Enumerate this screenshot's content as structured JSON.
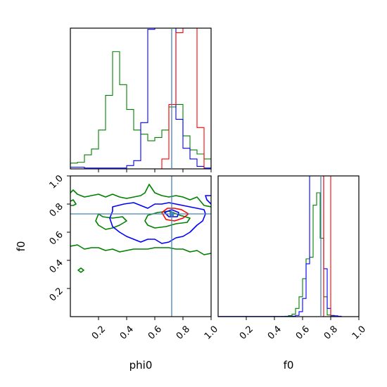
{
  "chart_data": {
    "type": "corner",
    "parameters": [
      "phi0",
      "f0"
    ],
    "truth": {
      "phi0": 0.72,
      "f0": 0.73
    },
    "colors": {
      "red": "#ff0000",
      "blue": "#0000ff",
      "green": "#008000",
      "truth": "#4682b4"
    },
    "tick_labels": [
      "0.2",
      "0.4",
      "0.6",
      "0.8",
      "1.0"
    ],
    "axes": {
      "phi0": {
        "range": [
          0.0,
          1.0
        ]
      },
      "f0": {
        "range": [
          0.0,
          1.0
        ]
      }
    },
    "xlabel_phi0": "phi0",
    "xlabel_f0": "f0",
    "ylabel_f0": "f0",
    "hist_phi0": {
      "bin_edges": [
        0.0,
        0.05,
        0.1,
        0.15,
        0.2,
        0.25,
        0.3,
        0.35,
        0.4,
        0.45,
        0.5,
        0.55,
        0.6,
        0.65,
        0.7,
        0.75,
        0.8,
        0.85,
        0.9,
        0.95,
        1.0
      ],
      "series": [
        {
          "color": "green",
          "counts": [
            7,
            8,
            17,
            24,
            47,
            89,
            142,
            102,
            72,
            47,
            42,
            34,
            38,
            47,
            75,
            78,
            40,
            23,
            18,
            12
          ]
        },
        {
          "color": "blue",
          "counts": [
            2,
            2,
            1,
            1,
            1,
            1,
            1,
            1,
            4,
            10,
            56,
            169,
            220,
            220,
            220,
            60,
            25,
            12,
            3,
            1
          ]
        },
        {
          "color": "red",
          "counts": [
            0,
            0,
            0,
            0,
            0,
            0,
            0,
            0,
            0,
            0,
            0,
            0,
            0,
            12,
            78,
            165,
            220,
            220,
            50,
            0
          ]
        }
      ],
      "ymax": 150
    },
    "hist_f0": {
      "bin_edges": [
        0.0,
        0.025,
        0.05,
        0.075,
        0.1,
        0.125,
        0.15,
        0.175,
        0.2,
        0.225,
        0.25,
        0.275,
        0.3,
        0.325,
        0.35,
        0.375,
        0.4,
        0.425,
        0.45,
        0.475,
        0.5,
        0.525,
        0.55,
        0.575,
        0.6,
        0.625,
        0.65,
        0.675,
        0.7,
        0.725,
        0.75,
        0.775,
        0.8,
        0.825,
        0.85,
        0.875,
        0.9,
        0.925,
        0.95,
        0.975,
        1.0
      ],
      "series": [
        {
          "color": "green",
          "counts": [
            0,
            0,
            0,
            0,
            0,
            0,
            0,
            0,
            0,
            0,
            0,
            0,
            0,
            0,
            0,
            0,
            0,
            0,
            0.3,
            0.5,
            1.2,
            3,
            10,
            24,
            46,
            70,
            72,
            135,
            150,
            95,
            24,
            2,
            1,
            0,
            0,
            0,
            0,
            0,
            0,
            0
          ]
        },
        {
          "color": "blue",
          "counts": [
            0.3,
            0.3,
            0.3,
            0.3,
            0.3,
            0.3,
            0.3,
            0.3,
            0.3,
            0.3,
            0.3,
            0.3,
            0.3,
            0.3,
            0.3,
            0.3,
            0.3,
            0.3,
            0.3,
            0.3,
            0.3,
            0.6,
            1.5,
            6,
            22,
            64,
            175,
            275,
            300,
            240,
            58,
            10,
            1.5,
            1,
            0.5,
            0,
            0,
            0,
            0,
            0
          ]
        },
        {
          "color": "red",
          "counts": [
            0,
            0,
            0,
            0,
            0,
            0,
            0,
            0,
            0,
            0,
            0,
            0,
            0,
            0,
            0,
            0,
            0,
            0,
            0,
            0,
            0,
            0,
            0,
            0,
            0,
            0,
            0,
            0,
            0,
            0,
            300,
            300,
            0,
            0,
            0,
            0,
            0,
            0,
            0,
            0
          ]
        }
      ],
      "ymax": 150
    },
    "contours_2d": [
      {
        "color": "green",
        "level": "outer-upper",
        "closed": false,
        "points": [
          [
            0.0,
            0.88
          ],
          [
            0.02,
            0.9
          ],
          [
            0.05,
            0.87
          ],
          [
            0.1,
            0.85
          ],
          [
            0.15,
            0.86
          ],
          [
            0.2,
            0.87
          ],
          [
            0.25,
            0.85
          ],
          [
            0.3,
            0.87
          ],
          [
            0.35,
            0.85
          ],
          [
            0.4,
            0.84
          ],
          [
            0.45,
            0.85
          ],
          [
            0.5,
            0.86
          ],
          [
            0.53,
            0.88
          ],
          [
            0.56,
            0.94
          ],
          [
            0.6,
            0.88
          ],
          [
            0.65,
            0.86
          ],
          [
            0.7,
            0.85
          ],
          [
            0.75,
            0.86
          ],
          [
            0.8,
            0.85
          ],
          [
            0.85,
            0.83
          ],
          [
            0.9,
            0.85
          ],
          [
            0.95,
            0.79
          ],
          [
            1.0,
            0.78
          ]
        ]
      },
      {
        "color": "green",
        "level": "outer-lower",
        "closed": false,
        "points": [
          [
            0.0,
            0.5
          ],
          [
            0.05,
            0.51
          ],
          [
            0.1,
            0.48
          ],
          [
            0.15,
            0.49
          ],
          [
            0.2,
            0.49
          ],
          [
            0.25,
            0.47
          ],
          [
            0.3,
            0.48
          ],
          [
            0.35,
            0.46
          ],
          [
            0.4,
            0.47
          ],
          [
            0.45,
            0.48
          ],
          [
            0.5,
            0.48
          ],
          [
            0.55,
            0.48
          ],
          [
            0.6,
            0.49
          ],
          [
            0.65,
            0.49
          ],
          [
            0.7,
            0.49
          ],
          [
            0.75,
            0.48
          ],
          [
            0.8,
            0.48
          ],
          [
            0.85,
            0.46
          ],
          [
            0.9,
            0.47
          ],
          [
            0.95,
            0.44
          ],
          [
            1.0,
            0.45
          ]
        ]
      },
      {
        "color": "green",
        "level": "outer-left-edge",
        "closed": false,
        "points": [
          [
            0.0,
            0.82
          ],
          [
            0.02,
            0.83
          ],
          [
            0.04,
            0.8
          ],
          [
            0.02,
            0.79
          ],
          [
            0.0,
            0.79
          ]
        ]
      },
      {
        "color": "green",
        "level": "island",
        "closed": true,
        "points": [
          [
            0.075,
            0.345
          ],
          [
            0.095,
            0.33
          ],
          [
            0.075,
            0.315
          ],
          [
            0.055,
            0.33
          ]
        ]
      },
      {
        "color": "green",
        "level": "inner-left",
        "closed": true,
        "points": [
          [
            0.2,
            0.73
          ],
          [
            0.23,
            0.71
          ],
          [
            0.3,
            0.7
          ],
          [
            0.37,
            0.71
          ],
          [
            0.4,
            0.68
          ],
          [
            0.35,
            0.65
          ],
          [
            0.3,
            0.63
          ],
          [
            0.25,
            0.62
          ],
          [
            0.2,
            0.65
          ],
          [
            0.18,
            0.68
          ]
        ]
      },
      {
        "color": "green",
        "level": "inner-right",
        "closed": true,
        "points": [
          [
            0.55,
            0.72
          ],
          [
            0.62,
            0.74
          ],
          [
            0.7,
            0.75
          ],
          [
            0.78,
            0.72
          ],
          [
            0.85,
            0.7
          ],
          [
            0.83,
            0.67
          ],
          [
            0.75,
            0.66
          ],
          [
            0.68,
            0.64
          ],
          [
            0.6,
            0.63
          ],
          [
            0.55,
            0.65
          ],
          [
            0.53,
            0.68
          ]
        ]
      },
      {
        "color": "blue",
        "level": "outer",
        "closed": true,
        "points": [
          [
            0.28,
            0.7
          ],
          [
            0.3,
            0.75
          ],
          [
            0.3,
            0.78
          ],
          [
            0.38,
            0.8
          ],
          [
            0.45,
            0.81
          ],
          [
            0.5,
            0.79
          ],
          [
            0.55,
            0.77
          ],
          [
            0.6,
            0.8
          ],
          [
            0.65,
            0.8
          ],
          [
            0.7,
            0.81
          ],
          [
            0.75,
            0.8
          ],
          [
            0.8,
            0.79
          ],
          [
            0.85,
            0.78
          ],
          [
            0.9,
            0.77
          ],
          [
            0.95,
            0.76
          ],
          [
            0.96,
            0.73
          ],
          [
            0.94,
            0.68
          ],
          [
            0.9,
            0.65
          ],
          [
            0.85,
            0.6
          ],
          [
            0.8,
            0.57
          ],
          [
            0.75,
            0.56
          ],
          [
            0.7,
            0.53
          ],
          [
            0.65,
            0.52
          ],
          [
            0.6,
            0.55
          ],
          [
            0.55,
            0.55
          ],
          [
            0.5,
            0.53
          ],
          [
            0.45,
            0.55
          ],
          [
            0.4,
            0.57
          ],
          [
            0.35,
            0.6
          ],
          [
            0.3,
            0.64
          ]
        ]
      },
      {
        "color": "blue",
        "level": "right-edge",
        "closed": false,
        "points": [
          [
            1.0,
            0.8
          ],
          [
            0.97,
            0.83
          ],
          [
            0.96,
            0.86
          ],
          [
            1.0,
            0.86
          ]
        ]
      },
      {
        "color": "red",
        "level": "inner",
        "closed": true,
        "points": [
          [
            0.65,
            0.74
          ],
          [
            0.69,
            0.77
          ],
          [
            0.74,
            0.77
          ],
          [
            0.79,
            0.76
          ],
          [
            0.84,
            0.73
          ],
          [
            0.8,
            0.7
          ],
          [
            0.74,
            0.68
          ],
          [
            0.68,
            0.69
          ]
        ]
      },
      {
        "color": "blue",
        "level": "inner",
        "closed": true,
        "points": [
          [
            0.67,
            0.74
          ],
          [
            0.72,
            0.76
          ],
          [
            0.77,
            0.74
          ],
          [
            0.76,
            0.71
          ],
          [
            0.7,
            0.71
          ]
        ]
      }
    ]
  }
}
